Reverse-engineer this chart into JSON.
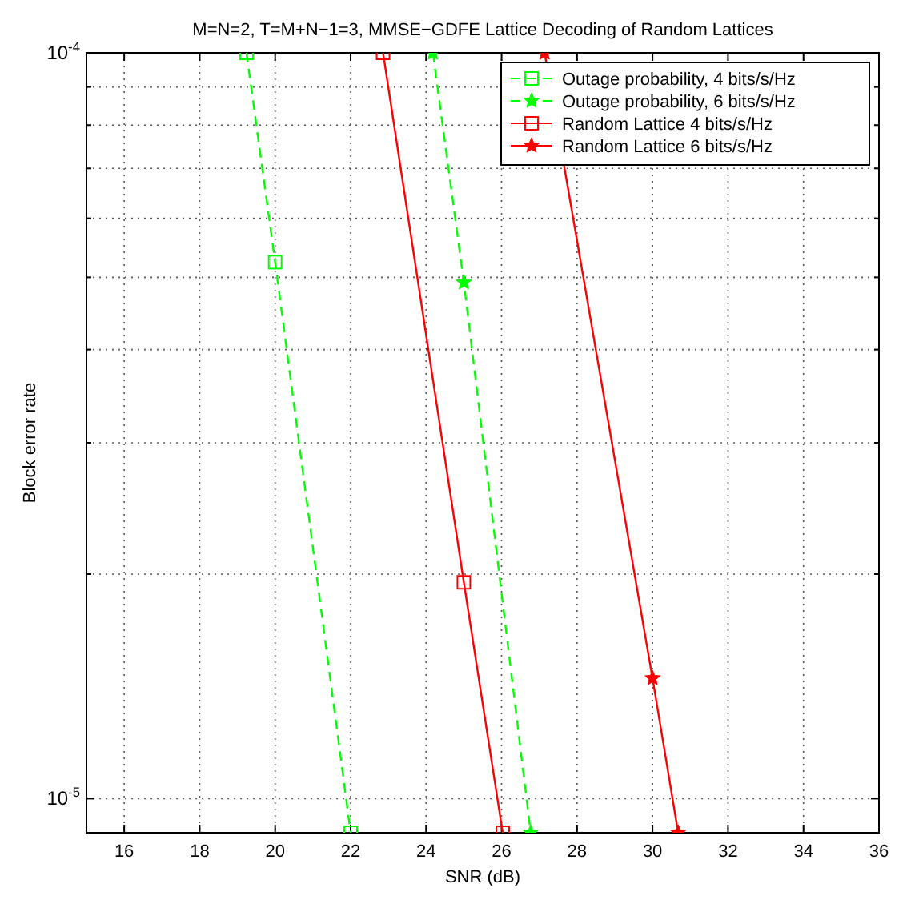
{
  "chart_data": {
    "type": "line",
    "title": "M=N=2, T=M+N−1=3, MMSE−GDFE Lattice Decoding of Random Lattices",
    "xlabel": "SNR (dB)",
    "ylabel": "Block error rate",
    "log": "y",
    "grid": true,
    "legend": "top right",
    "xlim": [
      15,
      36
    ],
    "xticks": [
      16,
      18,
      20,
      22,
      24,
      26,
      28,
      30,
      32,
      34,
      36
    ],
    "ylim": [
      9e-06,
      0.0001
    ],
    "yticks": [
      {
        "value": 1e-05,
        "label": "10$^{-5}$"
      },
      {
        "value": 2e-05,
        "label": null
      },
      {
        "value": 3e-05,
        "label": null
      },
      {
        "value": 4e-05,
        "label": null
      },
      {
        "value": 5e-05,
        "label": null
      },
      {
        "value": 6e-05,
        "label": null
      },
      {
        "value": 7e-05,
        "label": null
      },
      {
        "value": 8e-05,
        "label": null
      },
      {
        "value": 9e-05,
        "label": null
      },
      {
        "value": 0.0001,
        "label": "10$^{-4}$"
      }
    ],
    "series": [
      {
        "name": "Outage probability, 4 bits/s/Hz",
        "color": "#00ff00",
        "marker": "square",
        "line_style": "dashed",
        "x": [
          19.24,
          20,
          22.0
        ],
        "values": [
          0.0001,
          5.24e-05,
          9e-06
        ]
      },
      {
        "name": "Outage probability, 6 bits/s/Hz",
        "color": "#00ff00",
        "marker": "star",
        "line_style": "dashed",
        "x": [
          24.18,
          25,
          26.77
        ],
        "values": [
          0.0001,
          4.92e-05,
          9e-06
        ]
      },
      {
        "name": "Random Lattice 4 bits/s/Hz",
        "color": "#ff0000",
        "marker": "square",
        "line_style": "solid",
        "x": [
          22.86,
          25,
          26.03
        ],
        "values": [
          0.0001,
          1.95e-05,
          9e-06
        ]
      },
      {
        "name": "Random Lattice 6 bits/s/Hz",
        "color": "#ff0000",
        "marker": "star",
        "line_style": "solid",
        "x": [
          27.14,
          30,
          30.68
        ],
        "values": [
          0.0001,
          1.45e-05,
          9e-06
        ]
      }
    ]
  }
}
